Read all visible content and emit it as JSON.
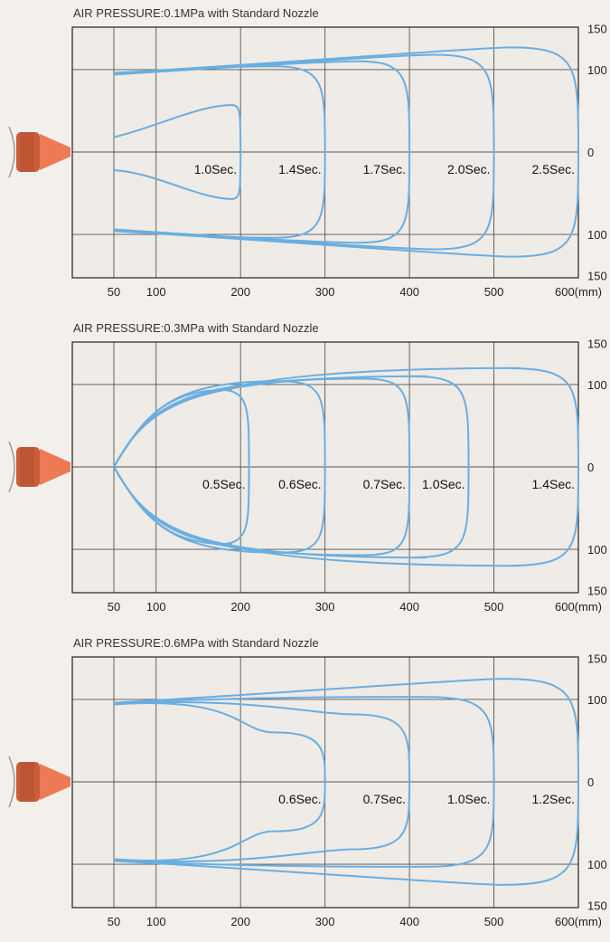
{
  "chart_data": [
    {
      "type": "line",
      "title": "AIR PRESSURE:0.1MPa with Standard Nozzle",
      "x_ticks": [
        "50",
        "100",
        "200",
        "300",
        "400",
        "500",
        "600(mm)"
      ],
      "y_ticks": [
        "150",
        "100",
        "0",
        "100",
        "150"
      ],
      "xlim": [
        0,
        600
      ],
      "ylim": [
        -150,
        150
      ],
      "series": [
        {
          "name": "1.0Sec.",
          "mode": "closed",
          "x0": 50,
          "tip": 200,
          "depth": 40,
          "bulge": 30,
          "width": 57
        },
        {
          "name": "1.4Sec.",
          "mode": "open",
          "x0": 50,
          "tip": 300,
          "depth": 60,
          "bulge": 0,
          "width": 104,
          "spread": 6
        },
        {
          "name": "1.7Sec.",
          "mode": "open",
          "x0": 50,
          "tip": 400,
          "depth": 60,
          "bulge": 5,
          "width": 110,
          "spread": 6
        },
        {
          "name": "2.0Sec.",
          "mode": "open",
          "x0": 50,
          "tip": 500,
          "depth": 70,
          "bulge": 8,
          "width": 118,
          "spread": 5
        },
        {
          "name": "2.5Sec.",
          "mode": "open",
          "x0": 50,
          "tip": 600,
          "depth": 80,
          "bulge": 12,
          "width": 127,
          "spread": 4
        }
      ]
    },
    {
      "type": "line",
      "title": "AIR PRESSURE:0.3MPa with Standard Nozzle",
      "x_ticks": [
        "50",
        "100",
        "200",
        "300",
        "400",
        "500",
        "600(mm)"
      ],
      "y_ticks": [
        "150",
        "100",
        "0",
        "100",
        "150"
      ],
      "xlim": [
        0,
        600
      ],
      "ylim": [
        -150,
        150
      ],
      "series": [
        {
          "name": "0.5Sec.",
          "mode": "point",
          "x0": 50,
          "tip": 210,
          "depth": 40,
          "bulge": 20,
          "width": 94
        },
        {
          "name": "0.6Sec.",
          "mode": "point",
          "x0": 50,
          "tip": 300,
          "depth": 55,
          "bulge": 0,
          "width": 104
        },
        {
          "name": "0.7Sec.",
          "mode": "point",
          "x0": 50,
          "tip": 400,
          "depth": 55,
          "bulge": 0,
          "width": 107
        },
        {
          "name": "1.0Sec.",
          "mode": "point",
          "x0": 50,
          "tip": 470,
          "depth": 70,
          "bulge": 20,
          "width": 110
        },
        {
          "name": "1.4Sec.",
          "mode": "point",
          "x0": 50,
          "tip": 600,
          "depth": 90,
          "bulge": 20,
          "width": 120
        }
      ]
    },
    {
      "type": "line",
      "title": "AIR PRESSURE:0.6MPa with Standard Nozzle",
      "x_ticks": [
        "50",
        "100",
        "200",
        "300",
        "400",
        "500",
        "600(mm)"
      ],
      "y_ticks": [
        "150",
        "100",
        "0",
        "100",
        "150"
      ],
      "xlim": [
        0,
        600
      ],
      "ylim": [
        -150,
        150
      ],
      "series": [
        {
          "name": "0.6Sec.",
          "mode": "open",
          "x0": 50,
          "tip": 300,
          "depth": 60,
          "bulge": 0,
          "width": 60,
          "spread": 6
        },
        {
          "name": "0.7Sec.",
          "mode": "open",
          "x0": 50,
          "tip": 400,
          "depth": 70,
          "bulge": 5,
          "width": 82,
          "spread": 6
        },
        {
          "name": "1.0Sec.",
          "mode": "open",
          "x0": 50,
          "tip": 500,
          "depth": 80,
          "bulge": 8,
          "width": 103,
          "spread": 5
        },
        {
          "name": "1.2Sec.",
          "mode": "open",
          "x0": 50,
          "tip": 600,
          "depth": 90,
          "bulge": 12,
          "width": 125,
          "spread": 4
        }
      ]
    }
  ]
}
